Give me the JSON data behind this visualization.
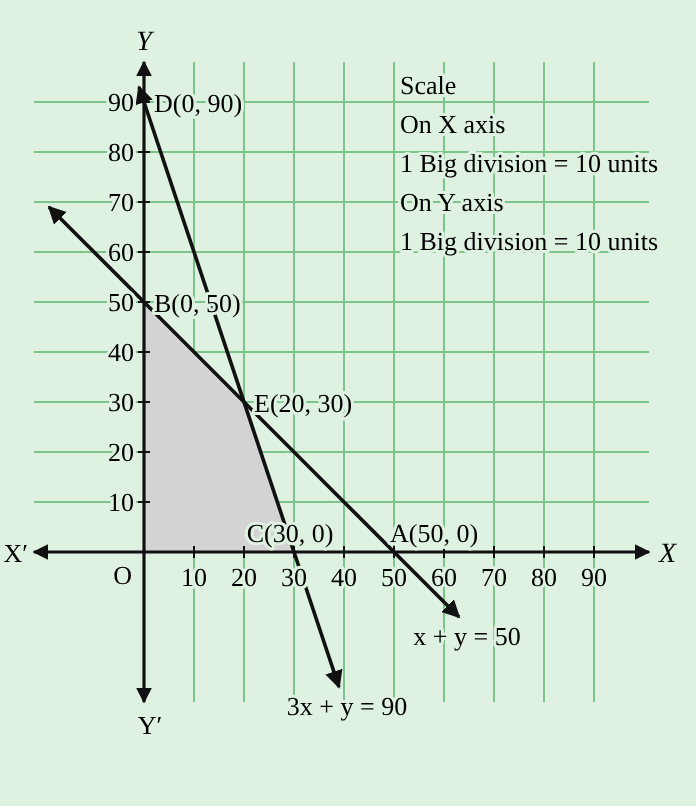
{
  "chart_data": {
    "type": "line",
    "xlabel": "X",
    "ylabel": "Y",
    "xlim": [
      -22,
      101
    ],
    "ylim": [
      -30,
      98
    ],
    "xticks": [
      10,
      20,
      30,
      40,
      50,
      60,
      70,
      80,
      90
    ],
    "yticks": [
      10,
      20,
      30,
      40,
      50,
      60,
      70,
      80,
      90
    ],
    "grid": true,
    "series": [
      {
        "type": "area",
        "color": "#d3d3d3",
        "x": [
          0,
          20,
          30
        ],
        "values": [
          50,
          30,
          0
        ]
      },
      {
        "color": "#111111",
        "x": [
          -19,
          63
        ],
        "values": [
          69,
          -13
        ]
      },
      {
        "color": "#111111",
        "x": [
          -1,
          39
        ],
        "values": [
          93,
          -27
        ]
      }
    ],
    "annotations": [
      "Scale",
      "On X axis",
      "1 Big division = 10 units",
      "On Y axis",
      "1 Big division = 10 units",
      "X′",
      "Y′",
      {
        "text": "D(0, 90)",
        "x": 0,
        "y": 90
      },
      {
        "text": "B(0, 50)",
        "x": 0,
        "y": 50
      },
      {
        "text": "E(20, 30)",
        "x": 20,
        "y": 30
      },
      {
        "text": "C(30, 0)",
        "x": 30,
        "y": 0
      },
      {
        "text": "A(50, 0)",
        "x": 50,
        "y": 0
      },
      {
        "text": "O",
        "x": 0,
        "y": 0
      },
      {
        "text": "x + y = 50",
        "x": 63,
        "y": -13
      },
      {
        "text": "3x + y = 90",
        "x": 39,
        "y": -27
      }
    ]
  }
}
